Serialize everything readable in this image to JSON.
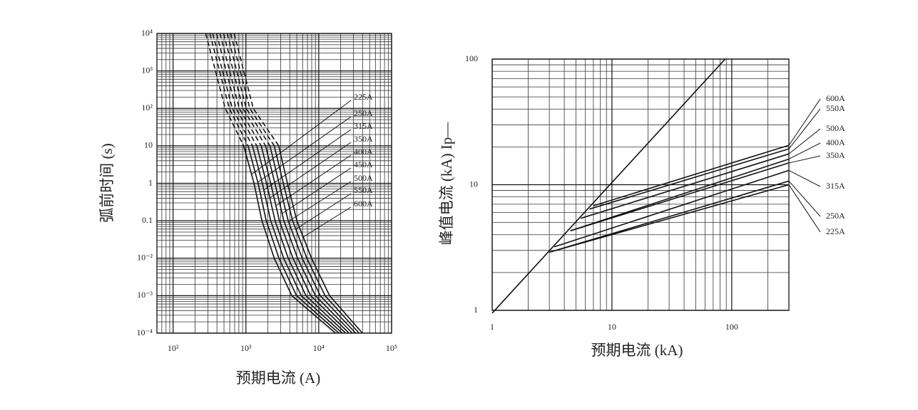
{
  "chart_data": [
    {
      "type": "line",
      "xlabel": "预期电流 (A)",
      "ylabel": "弧前时间 (s)",
      "xscale": "log",
      "yscale": "log",
      "grid": true,
      "minor_grid": true,
      "color": "#111111",
      "dashed_above": 10,
      "xlim": [
        60,
        100000
      ],
      "ylim": [
        0.0001,
        10000
      ],
      "xticks": [
        {
          "value": 100,
          "label": "10²"
        },
        {
          "value": 1000,
          "label": "10³"
        },
        {
          "value": 10000,
          "label": "10⁴"
        },
        {
          "value": 100000,
          "label": "10⁵"
        }
      ],
      "yticks": [
        {
          "value": 10000,
          "label": "10⁴"
        },
        {
          "value": 1000,
          "label": "10³"
        },
        {
          "value": 100,
          "label": "10²"
        },
        10,
        1,
        0.1,
        {
          "value": 0.01,
          "label": "10⁻²"
        },
        {
          "value": 0.001,
          "label": "10⁻³"
        },
        {
          "value": 0.0001,
          "label": "10⁻⁴"
        }
      ],
      "series": [
        {
          "name": "225A",
          "x": [
            280,
            520,
            930,
            1290,
            1660,
            2450,
            4270,
            17000
          ],
          "values": [
            10000,
            100,
            10,
            1,
            0.1,
            0.01,
            0.001,
            0.0001
          ]
        },
        {
          "name": "250A",
          "x": [
            320,
            590,
            1070,
            1470,
            1900,
            2840,
            4950,
            18900
          ],
          "values": [
            10000,
            100,
            10,
            1,
            0.1,
            0.01,
            0.001,
            0.0001
          ]
        },
        {
          "name": "315A",
          "x": [
            350,
            650,
            1230,
            1680,
            2190,
            3300,
            5750,
            21000
          ],
          "values": [
            10000,
            100,
            10,
            1,
            0.1,
            0.01,
            0.001,
            0.0001
          ]
        },
        {
          "name": "350A",
          "x": [
            395,
            730,
            1410,
            1920,
            2510,
            3810,
            6680,
            23400
          ],
          "values": [
            10000,
            100,
            10,
            1,
            0.1,
            0.01,
            0.001,
            0.0001
          ]
        },
        {
          "name": "400A",
          "x": [
            440,
            810,
            1620,
            2190,
            2880,
            4420,
            7760,
            26000
          ],
          "values": [
            10000,
            100,
            10,
            1,
            0.1,
            0.01,
            0.001,
            0.0001
          ]
        },
        {
          "name": "450A",
          "x": [
            494,
            910,
            1860,
            2500,
            3310,
            5120,
            9020,
            28900
          ],
          "values": [
            10000,
            100,
            10,
            1,
            0.1,
            0.01,
            0.001,
            0.0001
          ]
        },
        {
          "name": "500A",
          "x": [
            553,
            1010,
            2140,
            2850,
            3800,
            5930,
            10500,
            32200
          ],
          "values": [
            10000,
            100,
            10,
            1,
            0.1,
            0.01,
            0.001,
            0.0001
          ]
        },
        {
          "name": "550A",
          "x": [
            618,
            1130,
            2450,
            3260,
            4370,
            6860,
            12200,
            35800
          ],
          "values": [
            10000,
            100,
            10,
            1,
            0.1,
            0.01,
            0.001,
            0.0001
          ]
        },
        {
          "name": "600A",
          "x": [
            690,
            1260,
            2820,
            3720,
            5010,
            7940,
            14100,
            39800
          ],
          "values": [
            10000,
            100,
            10,
            1,
            0.1,
            0.01,
            0.001,
            0.0001
          ]
        }
      ]
    },
    {
      "type": "line",
      "xlabel": "预期电流 (kA)",
      "ylabel": "峰值电流 (kA) Ip—",
      "xscale": "log",
      "yscale": "log",
      "grid": true,
      "minor_grid": true,
      "color": "#111111",
      "xlim": [
        1,
        300
      ],
      "ylim": [
        1,
        100
      ],
      "xticks": [
        1,
        10,
        100
      ],
      "yticks": [
        1,
        10,
        100
      ],
      "reference_line": {
        "x": [
          1,
          88
        ],
        "values": [
          0.95,
          100
        ]
      },
      "series": [
        {
          "name": "600A",
          "x": [
            7,
            300
          ],
          "values": [
            6.8,
            20.6
          ]
        },
        {
          "name": "550A",
          "x": [
            6.5,
            300
          ],
          "values": [
            6.4,
            19.3
          ]
        },
        {
          "name": "500A",
          "x": [
            5.5,
            300
          ],
          "values": [
            5.4,
            17.6
          ]
        },
        {
          "name": "400A",
          "x": [
            4.5,
            300
          ],
          "values": [
            4.3,
            16
          ]
        },
        {
          "name": "350A",
          "x": [
            4.5,
            300
          ],
          "values": [
            4.3,
            14.9
          ]
        },
        {
          "name": "315A",
          "x": [
            3.3,
            300
          ],
          "values": [
            3.2,
            13
          ]
        },
        {
          "name": "250A",
          "x": [
            3,
            300
          ],
          "values": [
            2.9,
            10.7
          ]
        },
        {
          "name": "225A",
          "x": [
            3,
            300
          ],
          "values": [
            2.9,
            10
          ]
        }
      ]
    }
  ]
}
